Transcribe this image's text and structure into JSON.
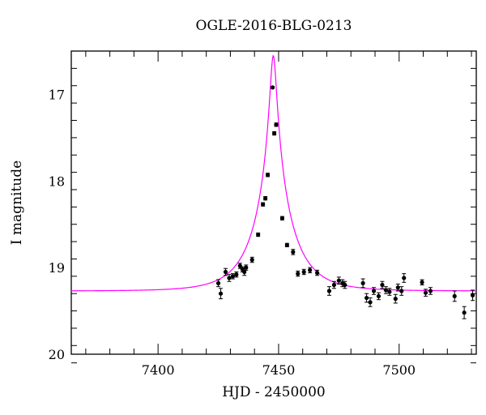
{
  "chart_data": {
    "type": "scatter",
    "title": "OGLE-2016-BLG-0213",
    "xlabel": "HJD - 2450000",
    "ylabel": "I magnitude",
    "xlim": [
      7364,
      7532
    ],
    "ylim": [
      20,
      16.5
    ],
    "y_inverted": true,
    "x_ticks": [
      7400,
      7450,
      7500
    ],
    "y_ticks": [
      17,
      18,
      19,
      20
    ],
    "x_minor_step": 10,
    "y_minor_step": 0.2,
    "grid": false,
    "colors": {
      "model": "#ff00ff",
      "points": "#000000"
    },
    "model": {
      "name": "",
      "t0": 7447.8,
      "u0": 0.082,
      "tE": 15.0,
      "I_base": 19.27
    },
    "series": [
      {
        "name": "",
        "x": [
          7425.0,
          7426.0,
          7428.0,
          7429.5,
          7431.0,
          7432.5,
          7434.0,
          7435.0,
          7435.8,
          7436.5,
          7439.0,
          7441.5,
          7443.5,
          7444.5,
          7445.5,
          7447.5,
          7448.2,
          7449.0,
          7451.5,
          7453.5,
          7456.0,
          7458.0,
          7460.5,
          7463.0,
          7466.0,
          7471.0,
          7473.0,
          7475.0,
          7476.5,
          7477.5,
          7485.0,
          7486.5,
          7488.0,
          7489.5,
          7491.5,
          7493.0,
          7494.5,
          7496.0,
          7498.5,
          7499.5,
          7501.0,
          7502.0,
          7509.5,
          7511.0,
          7513.0,
          7523.0,
          7527.0,
          7530.5
        ],
        "y": [
          19.18,
          19.3,
          19.05,
          19.12,
          19.1,
          19.08,
          18.98,
          19.02,
          19.05,
          19.0,
          18.91,
          18.62,
          18.27,
          18.2,
          17.93,
          16.92,
          17.45,
          17.35,
          18.43,
          18.74,
          18.82,
          19.07,
          19.05,
          19.03,
          19.06,
          19.27,
          19.2,
          19.15,
          19.18,
          19.2,
          19.18,
          19.35,
          19.4,
          19.27,
          19.33,
          19.2,
          19.26,
          19.28,
          19.36,
          19.23,
          19.27,
          19.12,
          19.17,
          19.29,
          19.27,
          19.33,
          19.52,
          19.32
        ],
        "yerr": [
          0.04,
          0.06,
          0.04,
          0.04,
          0.03,
          0.03,
          0.03,
          0.03,
          0.04,
          0.03,
          0.03,
          0.02,
          0.02,
          0.02,
          0.02,
          0.01,
          0.02,
          0.02,
          0.02,
          0.02,
          0.03,
          0.03,
          0.03,
          0.03,
          0.03,
          0.05,
          0.04,
          0.04,
          0.04,
          0.04,
          0.05,
          0.05,
          0.05,
          0.04,
          0.04,
          0.04,
          0.04,
          0.04,
          0.05,
          0.04,
          0.05,
          0.05,
          0.03,
          0.04,
          0.04,
          0.06,
          0.07,
          0.06
        ]
      }
    ]
  }
}
